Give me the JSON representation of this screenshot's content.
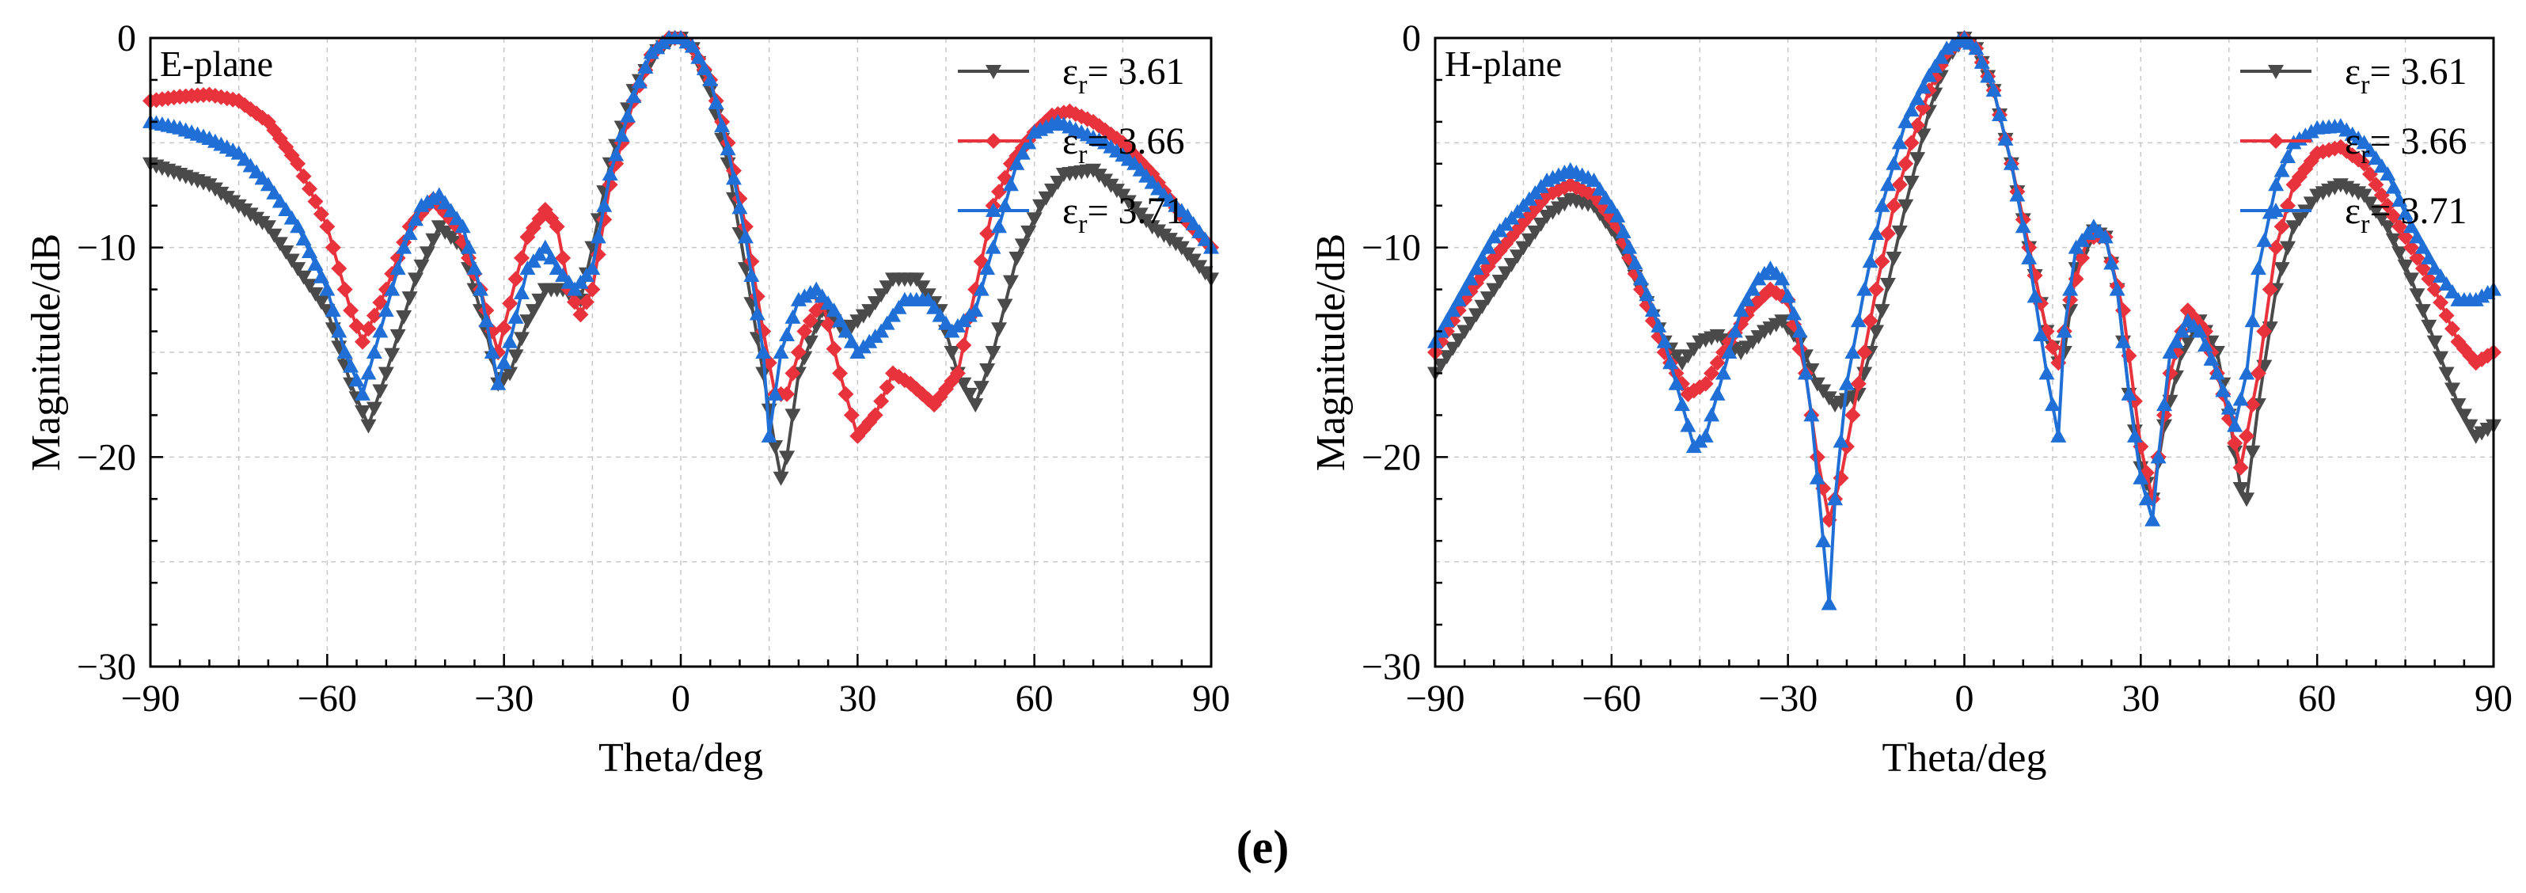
{
  "figure": {
    "caption": "(e)"
  },
  "colors": {
    "er_361": "#4a4a4a",
    "er_366": "#e8323c",
    "er_371": "#1f6fd6"
  },
  "chart_data": [
    {
      "type": "line",
      "panel_label": "E-plane",
      "xlabel": "Theta/deg",
      "ylabel": "Magnitude/dB",
      "xlim": [
        -90,
        90
      ],
      "ylim": [
        -30,
        0
      ],
      "xticks": [
        -90,
        -60,
        -30,
        0,
        30,
        60,
        90
      ],
      "yticks": [
        0,
        -10,
        -20,
        -30
      ],
      "grid": true,
      "legend": "top-right",
      "series": [
        {
          "name": "εr= 3.61",
          "symbol": "er",
          "sub": "r",
          "value": "= 3.61",
          "marker": "triangle-down",
          "color": "#4a4a4a",
          "x": [
            -90,
            -80,
            -70,
            -60,
            -56,
            -53,
            -50,
            -45,
            -41,
            -37,
            -33,
            -31,
            -29,
            -26,
            -23,
            -20,
            -17,
            -15,
            -12,
            -8,
            -4,
            -1,
            0,
            2,
            5,
            8,
            11,
            14,
            16,
            17,
            18,
            20,
            24,
            28,
            32,
            36,
            40,
            44,
            47,
            50,
            53,
            57,
            61,
            65,
            70,
            75,
            80,
            85,
            90
          ],
          "y": [
            -6,
            -7,
            -9,
            -13,
            -16.5,
            -18.5,
            -16,
            -11.5,
            -9,
            -10,
            -14,
            -16.5,
            -16,
            -13.5,
            -12,
            -12,
            -12.5,
            -10,
            -6,
            -2.5,
            -0.6,
            0,
            0,
            -0.5,
            -2.5,
            -6,
            -11,
            -16,
            -19.5,
            -21,
            -20,
            -16,
            -13,
            -14,
            -13,
            -11.5,
            -11.5,
            -13,
            -16,
            -17.5,
            -15,
            -10.5,
            -8,
            -6.5,
            -6.3,
            -7.5,
            -9,
            -10,
            -11.5
          ]
        },
        {
          "name": "εr= 3.66",
          "symbol": "er",
          "sub": "r",
          "value": "= 3.66",
          "marker": "diamond",
          "color": "#e8323c",
          "x": [
            -90,
            -85,
            -80,
            -75,
            -70,
            -65,
            -60,
            -56,
            -54,
            -50,
            -46,
            -42,
            -38,
            -34,
            -31,
            -28,
            -26,
            -23,
            -21,
            -19,
            -17,
            -15,
            -12,
            -8,
            -5,
            -2,
            0,
            2,
            5,
            8,
            11,
            14,
            16,
            18,
            21,
            24,
            27,
            30,
            33,
            36,
            39,
            43,
            47,
            50,
            53,
            56,
            60,
            63,
            66,
            70,
            75,
            80,
            85,
            90
          ],
          "y": [
            -3,
            -2.8,
            -2.7,
            -3,
            -4,
            -6,
            -9,
            -13,
            -14.5,
            -12,
            -9,
            -7.7,
            -9,
            -12,
            -15,
            -11.5,
            -9.5,
            -8.2,
            -9,
            -12,
            -13.2,
            -12,
            -7,
            -3,
            -0.8,
            0,
            0,
            -0.5,
            -2,
            -5,
            -9,
            -14,
            -17,
            -17,
            -14,
            -12.5,
            -16,
            -19,
            -18,
            -16,
            -16.5,
            -17.5,
            -16,
            -12,
            -8,
            -6,
            -4.5,
            -3.7,
            -3.5,
            -4,
            -5,
            -6.5,
            -8.5,
            -10
          ]
        },
        {
          "name": "εr= 3.71",
          "symbol": "er",
          "sub": "r",
          "value": "= 3.71",
          "marker": "triangle-up",
          "color": "#1f6fd6",
          "x": [
            -90,
            -85,
            -80,
            -75,
            -70,
            -65,
            -60,
            -57,
            -54,
            -51,
            -47,
            -44,
            -41,
            -37,
            -34,
            -31,
            -29,
            -26,
            -23,
            -21,
            -18,
            -15,
            -12,
            -8,
            -5,
            -2,
            0,
            2,
            5,
            8,
            11,
            14,
            15,
            17,
            20,
            23,
            26,
            30,
            34,
            38,
            42,
            46,
            50,
            54,
            57,
            60,
            64,
            68,
            72,
            77,
            82,
            86,
            90
          ],
          "y": [
            -4,
            -4.3,
            -4.8,
            -5.5,
            -7,
            -9,
            -12,
            -15,
            -17,
            -14,
            -10,
            -8,
            -7.5,
            -9,
            -12,
            -16.5,
            -14.5,
            -11,
            -10,
            -11,
            -12,
            -11,
            -6.5,
            -2.8,
            -0.7,
            0,
            0,
            -0.4,
            -2,
            -5.3,
            -9.5,
            -15,
            -19,
            -15,
            -12.5,
            -12,
            -13,
            -15,
            -14,
            -12.5,
            -12.5,
            -14,
            -13,
            -9,
            -6,
            -4.5,
            -4,
            -4.5,
            -5,
            -6,
            -7.5,
            -8.5,
            -10
          ]
        }
      ]
    },
    {
      "type": "line",
      "panel_label": "H-plane",
      "xlabel": "Theta/deg",
      "ylabel": "Magnitude/dB",
      "xlim": [
        -90,
        90
      ],
      "ylim": [
        -30,
        0
      ],
      "xticks": [
        -90,
        -60,
        -30,
        0,
        30,
        60,
        90
      ],
      "yticks": [
        0,
        -10,
        -20,
        -30
      ],
      "grid": true,
      "legend": "top-right",
      "series": [
        {
          "name": "εr= 3.61",
          "symbol": "er",
          "sub": "r",
          "value": "= 3.61",
          "marker": "triangle-down",
          "color": "#4a4a4a",
          "x": [
            -90,
            -85,
            -80,
            -75,
            -71,
            -67,
            -63,
            -59,
            -55,
            -51,
            -48,
            -45,
            -42,
            -38,
            -34,
            -31,
            -28,
            -25,
            -22,
            -18,
            -14,
            -10,
            -6,
            -3,
            0,
            2,
            5,
            8,
            11,
            14,
            16,
            17,
            19,
            22,
            24,
            26,
            28,
            30,
            32,
            34,
            37,
            40,
            43,
            45,
            47,
            48,
            50,
            53,
            56,
            60,
            64,
            68,
            72,
            76,
            80,
            84,
            87,
            90
          ],
          "y": [
            -16,
            -14,
            -12,
            -10,
            -8.5,
            -7.7,
            -8,
            -9.5,
            -12,
            -14.5,
            -15.5,
            -14.5,
            -14.2,
            -15,
            -14,
            -13.5,
            -14.5,
            -16.5,
            -17.5,
            -17,
            -13,
            -8,
            -3.5,
            -1,
            0,
            -0.5,
            -2.5,
            -6,
            -10,
            -14,
            -15.5,
            -15,
            -11,
            -9.2,
            -9.5,
            -12,
            -17,
            -20.5,
            -22,
            -18.5,
            -15,
            -13.5,
            -15,
            -18,
            -21.5,
            -22,
            -17.5,
            -12,
            -9,
            -7.5,
            -7,
            -7.5,
            -9,
            -11.5,
            -14.5,
            -17.5,
            -19,
            -18.5
          ]
        },
        {
          "name": "εr= 3.66",
          "symbol": "er",
          "sub": "r",
          "value": "= 3.66",
          "marker": "diamond",
          "color": "#e8323c",
          "x": [
            -90,
            -85,
            -80,
            -75,
            -71,
            -67,
            -63,
            -59,
            -55,
            -51,
            -47,
            -44,
            -40,
            -36,
            -33,
            -30,
            -27,
            -25,
            -23,
            -21,
            -18,
            -15,
            -12,
            -9,
            -6,
            -3,
            0,
            2,
            5,
            8,
            11,
            14,
            16,
            18,
            21,
            24,
            27,
            30,
            32,
            35,
            38,
            41,
            44,
            47,
            50,
            53,
            56,
            60,
            64,
            68,
            72,
            76,
            80,
            84,
            87,
            90
          ],
          "y": [
            -15,
            -12.5,
            -10.5,
            -8.8,
            -7.5,
            -7,
            -7.5,
            -9,
            -12,
            -15,
            -17,
            -16.5,
            -14.5,
            -12.8,
            -12,
            -12.5,
            -16,
            -20,
            -23,
            -21,
            -16.5,
            -12,
            -8,
            -5,
            -2.5,
            -0.7,
            0,
            -0.5,
            -2.5,
            -6,
            -10,
            -14,
            -15.5,
            -12.5,
            -9.5,
            -9.5,
            -13,
            -19.5,
            -22,
            -16,
            -13,
            -14,
            -17,
            -20.5,
            -16,
            -10,
            -7,
            -5.5,
            -5.2,
            -6,
            -8,
            -10,
            -12,
            -14.5,
            -15.5,
            -15
          ]
        },
        {
          "name": "εr= 3.71",
          "symbol": "er",
          "sub": "r",
          "value": "= 3.71",
          "marker": "triangle-up",
          "color": "#1f6fd6",
          "x": [
            -90,
            -85,
            -80,
            -75,
            -71,
            -67,
            -63,
            -59,
            -55,
            -51,
            -48,
            -46,
            -44,
            -41,
            -38,
            -35,
            -33,
            -31,
            -28,
            -26,
            -24,
            -23,
            -22,
            -20,
            -17,
            -14,
            -10,
            -6,
            -3,
            0,
            2,
            5,
            8,
            11,
            14,
            16,
            17,
            19,
            22,
            24,
            26,
            28,
            30,
            32,
            33,
            35,
            38,
            40,
            43,
            46,
            48,
            50,
            53,
            56,
            60,
            64,
            68,
            72,
            76,
            80,
            84,
            87,
            90
          ],
          "y": [
            -14.5,
            -12,
            -9.5,
            -8,
            -6.8,
            -6.3,
            -6.8,
            -8.5,
            -11.5,
            -14.5,
            -17.5,
            -19.5,
            -19,
            -16,
            -13,
            -11.5,
            -11,
            -11.5,
            -14,
            -18,
            -24,
            -27,
            -22,
            -16.5,
            -12,
            -8,
            -4,
            -1.8,
            -0.5,
            0,
            -0.5,
            -2.5,
            -6,
            -10.5,
            -16,
            -19,
            -14,
            -10,
            -9,
            -9.5,
            -12,
            -17,
            -21,
            -23,
            -20,
            -15,
            -13.5,
            -14,
            -16,
            -18.5,
            -16,
            -11,
            -7,
            -5,
            -4.3,
            -4.2,
            -5,
            -6.5,
            -9,
            -11,
            -12.5,
            -12.5,
            -12
          ]
        }
      ]
    }
  ]
}
